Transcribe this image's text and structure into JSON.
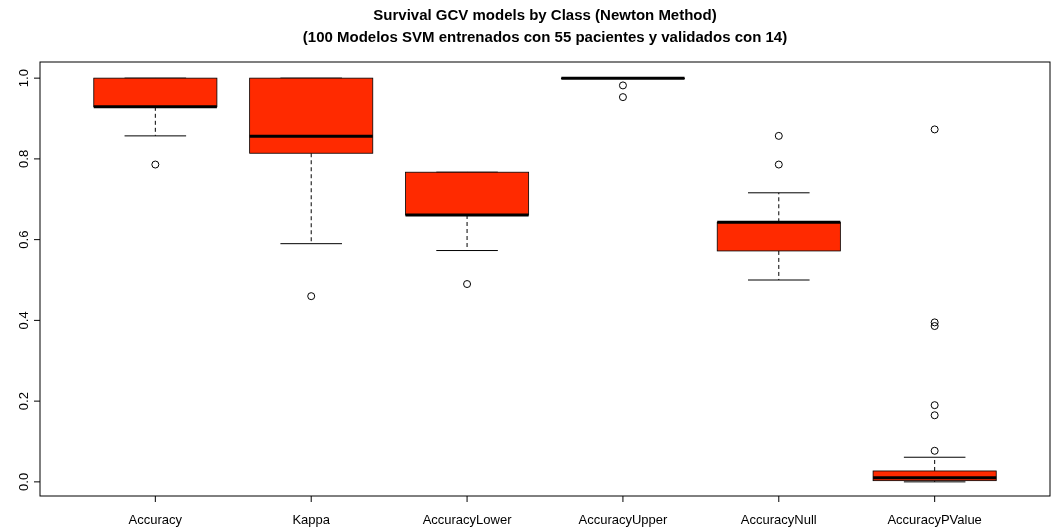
{
  "chart_data": {
    "type": "box",
    "title": "Survival GCV models by Class (Newton Method)",
    "subtitle": "(100 Modelos SVM entrenados con 55 pacientes y validados con 14)",
    "categories": [
      "Accuracy",
      "Kappa",
      "AccuracyLower",
      "AccuracyUpper",
      "AccuracyNull",
      "AccuracyPValue"
    ],
    "color": "#ff2a00",
    "ylim": [
      -0.035,
      1.04
    ],
    "yticks": [
      {
        "value": 0,
        "label": "0.0"
      },
      0.2,
      0.4,
      0.6,
      0.8,
      {
        "value": 1,
        "label": "1.0"
      }
    ],
    "grid": false,
    "boxes": [
      {
        "low": 0.857,
        "q1": 0.929,
        "median": 0.929,
        "q3": 1.0,
        "high": 1.0,
        "outliers": [
          0.786
        ]
      },
      {
        "low": 0.59,
        "q1": 0.814,
        "median": 0.856,
        "q3": 1.0,
        "high": 1.0,
        "outliers": [
          0.46
        ]
      },
      {
        "low": 0.573,
        "q1": 0.661,
        "median": 0.661,
        "q3": 0.767,
        "high": 0.767,
        "outliers": [
          0.49
        ]
      },
      {
        "low": 1.0,
        "q1": 1.0,
        "median": 1.0,
        "q3": 1.0,
        "high": 1.0,
        "outliers": [
          0.982,
          0.953
        ]
      },
      {
        "low": 0.5,
        "q1": 0.572,
        "median": 0.643,
        "q3": 0.643,
        "high": 0.716,
        "outliers": [
          0.857,
          0.786
        ]
      },
      {
        "low": 0.0,
        "q1": 0.003,
        "median": 0.01,
        "q3": 0.027,
        "high": 0.061,
        "outliers": [
          0.873,
          0.395,
          0.386,
          0.19,
          0.165,
          0.077
        ]
      }
    ]
  }
}
